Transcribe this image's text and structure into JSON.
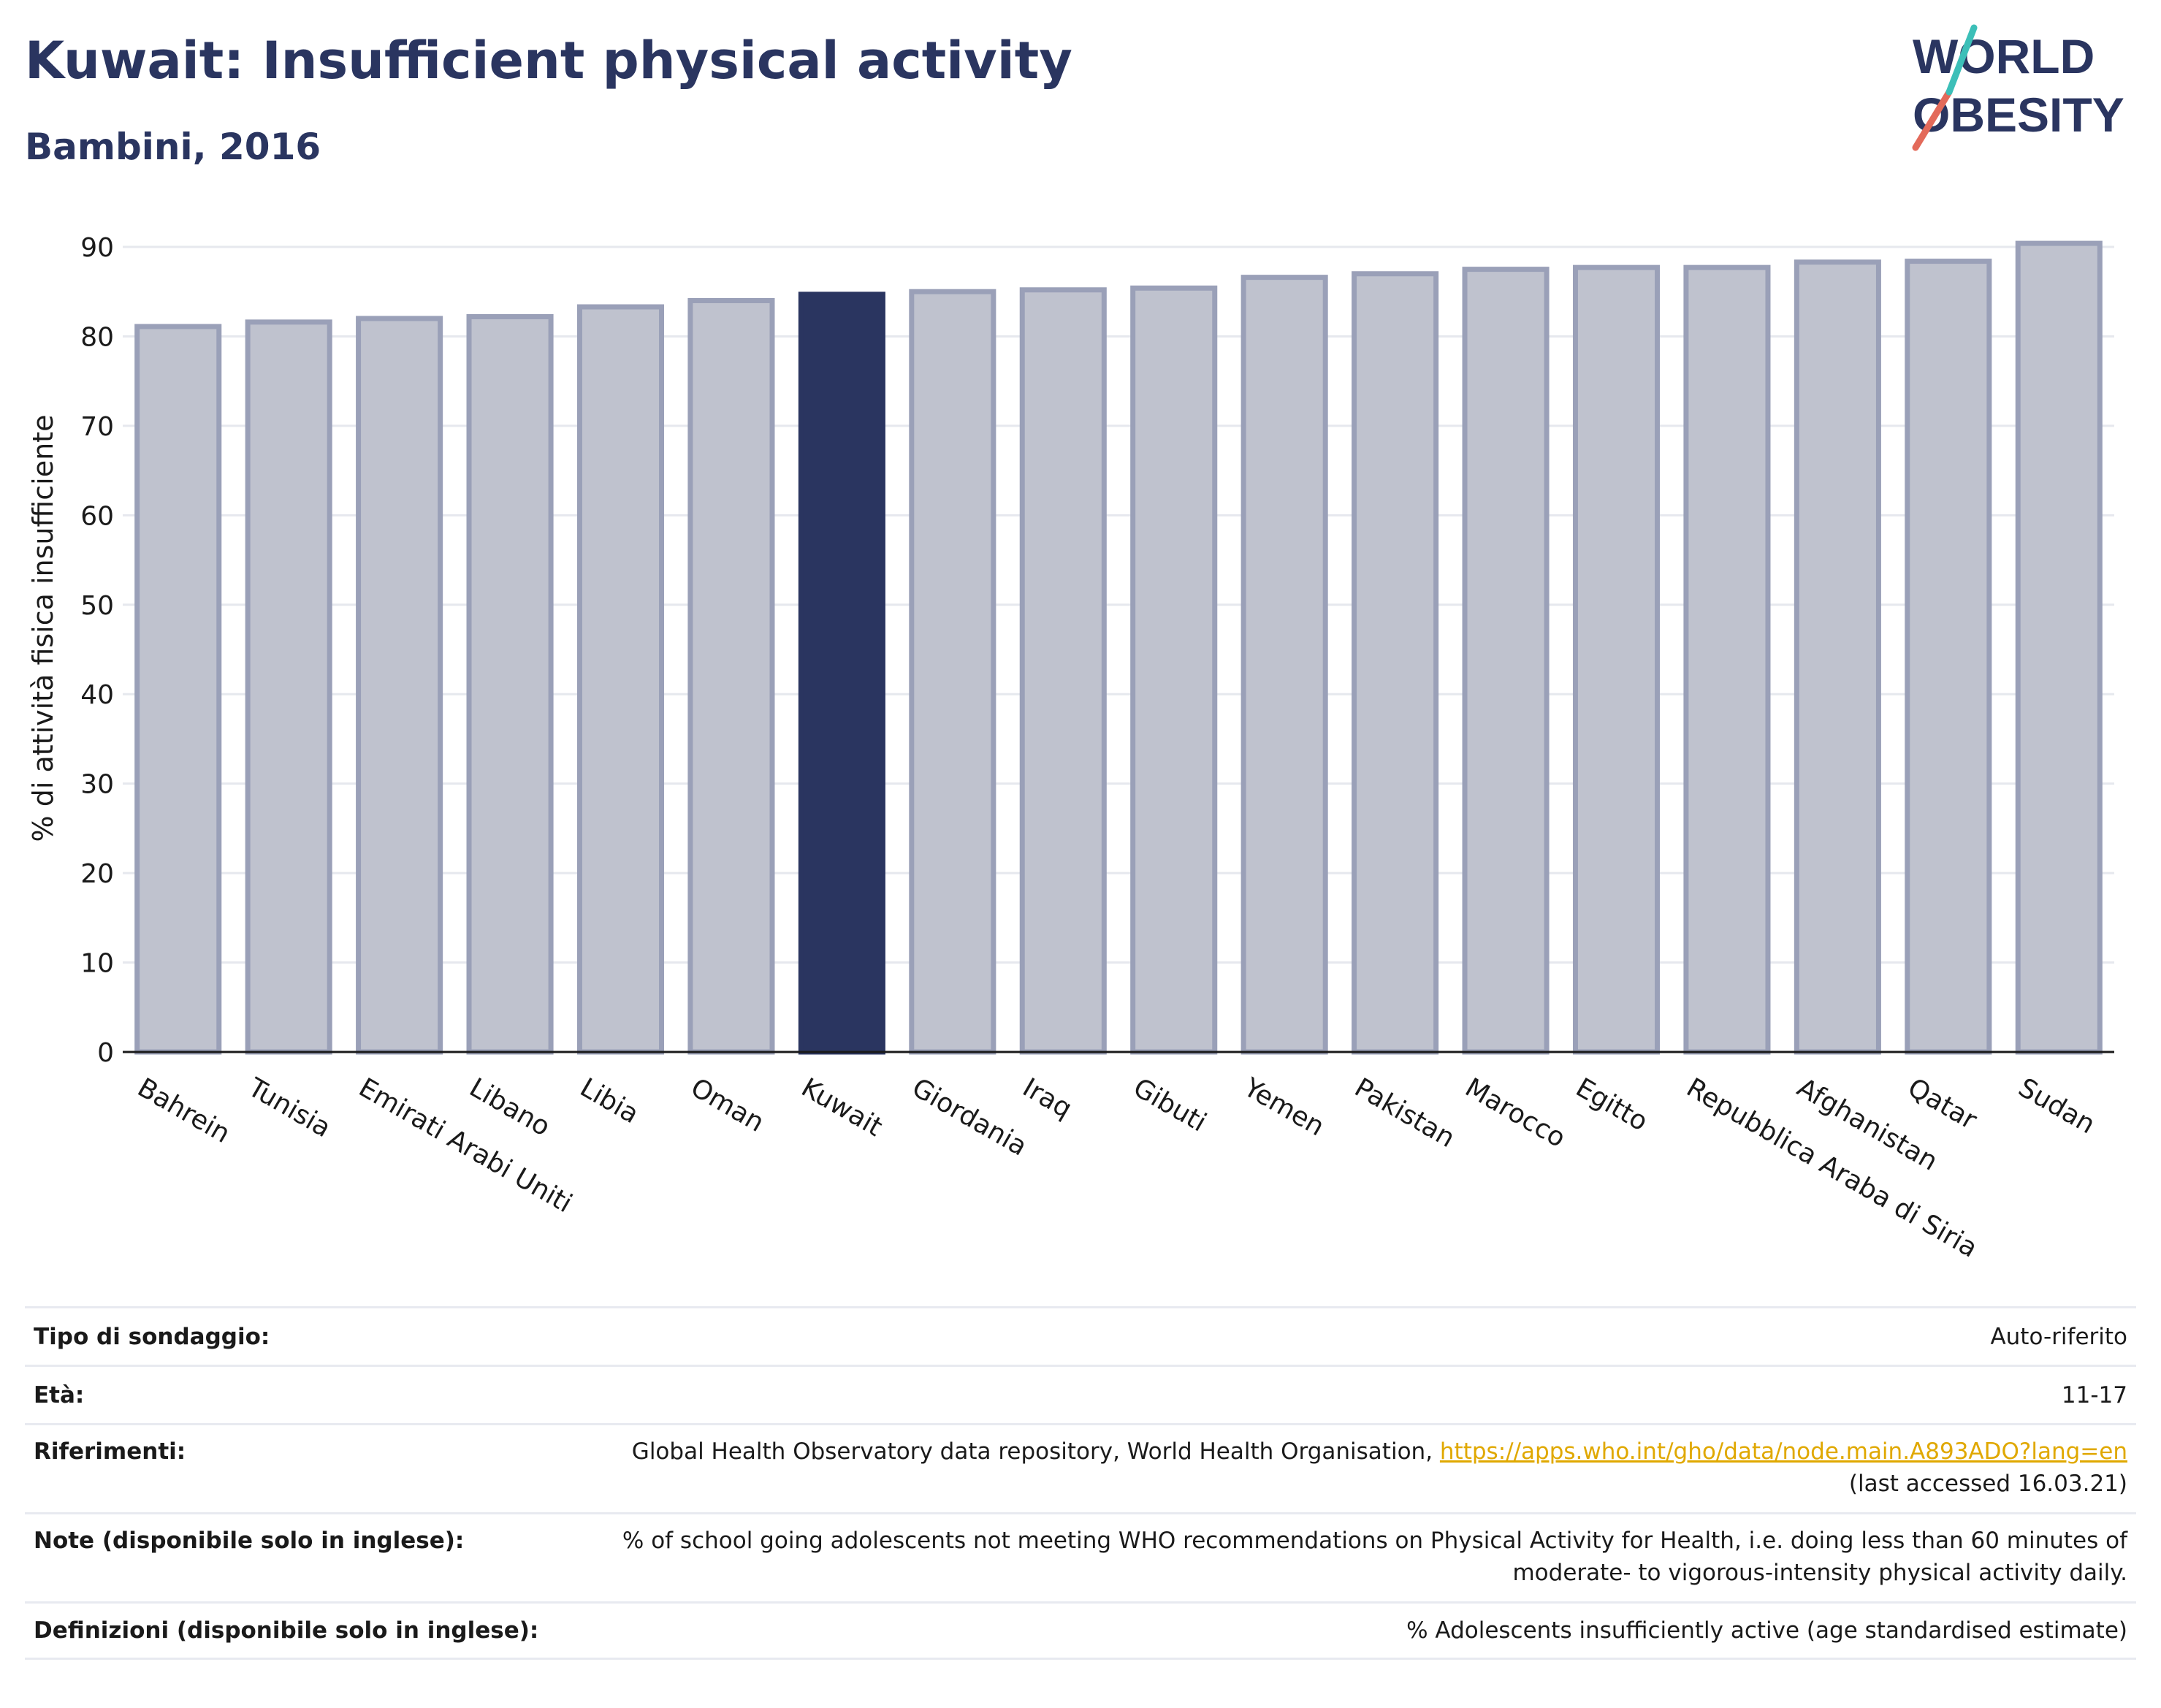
{
  "header": {
    "title": "Kuwait: Insufficient physical activity",
    "subtitle": "Bambini, 2016"
  },
  "logo": {
    "line1": "WORLD",
    "line2": "OBESITY"
  },
  "chart_data": {
    "type": "bar",
    "ylabel": "% di attività fisica insufficiente",
    "ylim": [
      0,
      90
    ],
    "yticks": [
      0,
      10,
      20,
      30,
      40,
      50,
      60,
      70,
      80,
      90
    ],
    "grid": true,
    "categories": [
      "Bahrein",
      "Tunisia",
      "Emirati Arabi Uniti",
      "Libano",
      "Libia",
      "Oman",
      "Kuwait",
      "Giordania",
      "Iraq",
      "Gibuti",
      "Yemen",
      "Pakistan",
      "Marocco",
      "Egitto",
      "Repubblica Araba di Siria",
      "Afghanistan",
      "Qatar",
      "Sudan"
    ],
    "values": [
      81.1,
      81.6,
      82.0,
      82.2,
      83.3,
      84.0,
      84.7,
      85.0,
      85.2,
      85.4,
      86.6,
      87.0,
      87.5,
      87.7,
      87.7,
      88.3,
      88.4,
      90.4
    ],
    "highlight": "Kuwait",
    "colors": {
      "bar": "#bfc2ce",
      "bar_stroke": "#9aa0b8",
      "highlight": "#2a3560"
    }
  },
  "info": [
    {
      "label": "Tipo di sondaggio:",
      "value": "Auto-riferito"
    },
    {
      "label": "Età:",
      "value": "11-17"
    },
    {
      "label": "Riferimenti:",
      "value": "Global Health Observatory data repository, World Health Organisation, ",
      "link": "https://apps.who.int/gho/data/node.main.A893ADO?lang=en",
      "extra": "(last accessed 16.03.21)"
    },
    {
      "label": "Note (disponibile solo in inglese):",
      "value": "% of school going adolescents not meeting WHO recommendations on Physical Activity for Health, i.e. doing less than 60 minutes of",
      "extra": "moderate- to vigorous-intensity physical activity daily."
    },
    {
      "label": "Definizioni (disponibile solo in inglese):",
      "value": "% Adolescents insufficiently active (age standardised estimate)"
    }
  ]
}
